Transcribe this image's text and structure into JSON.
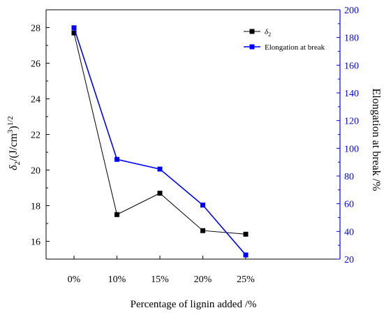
{
  "chart_data": {
    "type": "line",
    "x_label": "Percentage of lignin added /%",
    "categories": [
      "0%",
      "10%",
      "15%",
      "20%",
      "25%"
    ],
    "left_axis": {
      "label_main": "δ",
      "label_sub": "2",
      "label_rest": "/(J/cm",
      "label_sup": "3",
      "label_close": ")",
      "label_exp": "1/2",
      "range": [
        15,
        29
      ],
      "ticks": [
        16,
        18,
        20,
        22,
        24,
        26,
        28
      ],
      "color": "#000000"
    },
    "right_axis": {
      "label": "Elongation at break /%",
      "range": [
        20,
        200
      ],
      "ticks": [
        20,
        40,
        60,
        80,
        100,
        120,
        140,
        160,
        180,
        200
      ],
      "color": "#0000ff"
    },
    "series": [
      {
        "name": "δ",
        "name_sub": "2",
        "axis": "left",
        "color": "#000000",
        "values": [
          27.7,
          17.5,
          18.7,
          16.6,
          16.4
        ]
      },
      {
        "name": "Elongation at break",
        "axis": "right",
        "color": "#0000ff",
        "values": [
          187,
          92,
          85,
          59,
          23
        ]
      }
    ],
    "legend_position": "top-right",
    "grid": false
  }
}
